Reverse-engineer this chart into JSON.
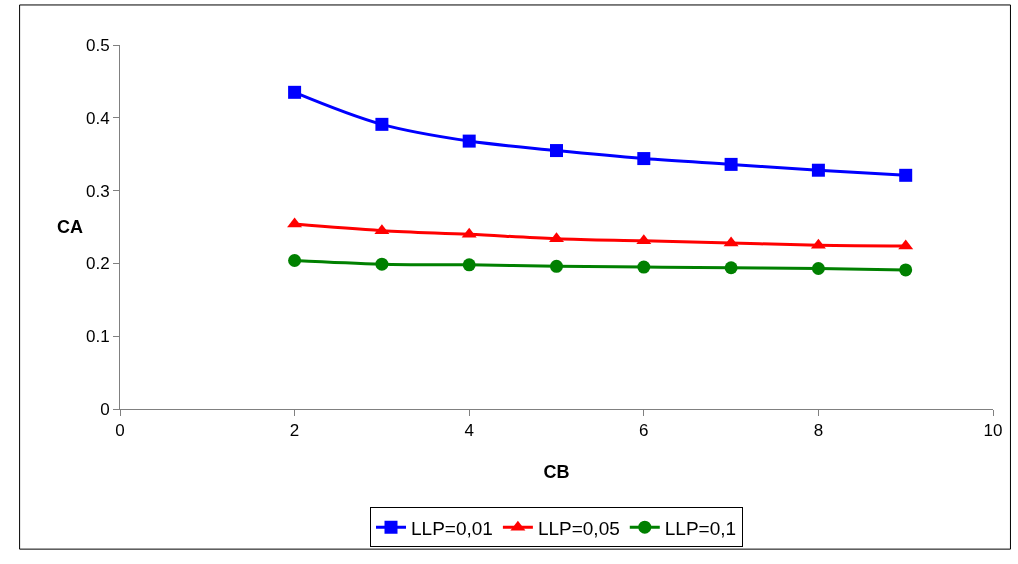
{
  "chart_data": {
    "type": "line",
    "xlabel": "CB",
    "ylabel": "CA",
    "x": [
      2,
      3,
      4,
      5,
      6,
      7,
      8,
      9
    ],
    "series": [
      {
        "name": "LLP=0,01",
        "color": "#0000ff",
        "marker": "square",
        "values": [
          0.435,
          0.391,
          0.368,
          0.355,
          0.344,
          0.336,
          0.328,
          0.321
        ]
      },
      {
        "name": "LLP=0,05",
        "color": "#ff0000",
        "marker": "triangle",
        "values": [
          0.254,
          0.245,
          0.24,
          0.234,
          0.231,
          0.228,
          0.225,
          0.224
        ]
      },
      {
        "name": "LLP=0,1",
        "color": "#008000",
        "marker": "circle",
        "values": [
          0.204,
          0.199,
          0.198,
          0.196,
          0.195,
          0.194,
          0.193,
          0.191
        ]
      }
    ],
    "xlim": [
      0,
      10
    ],
    "xticks": [
      0,
      2,
      4,
      6,
      8,
      10
    ],
    "ylim": [
      0,
      0.5
    ],
    "yticks": [
      0,
      0.1,
      0.2,
      0.3,
      0.4,
      0.5
    ],
    "grid": false,
    "legend": "bottom",
    "line_style": "solid"
  }
}
